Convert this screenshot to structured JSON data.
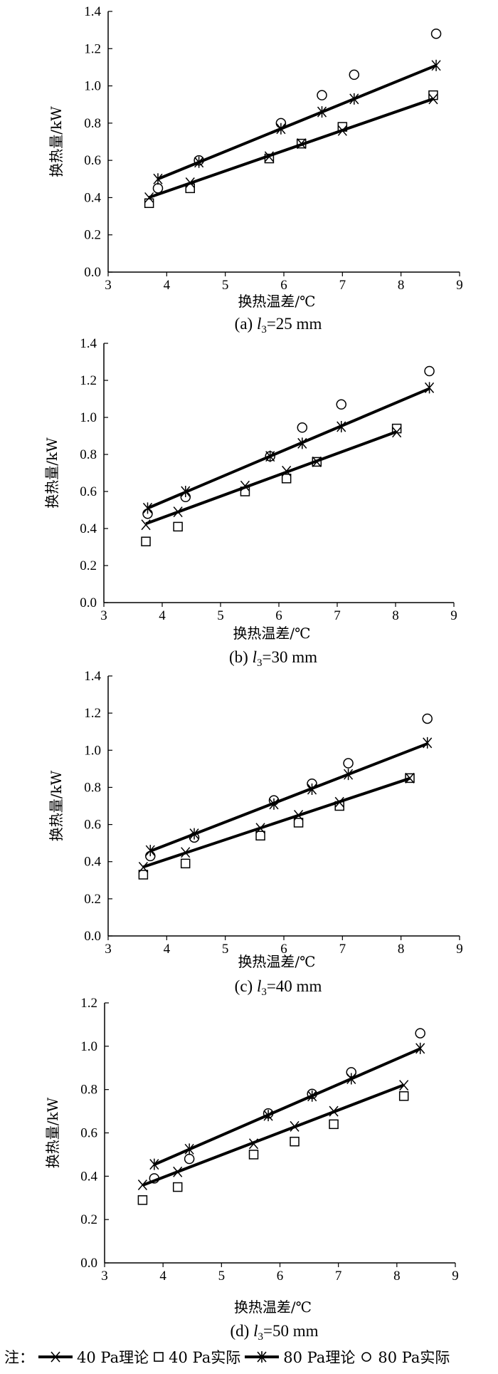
{
  "legend": {
    "prefix": "注：",
    "items": [
      "40 Pa理论",
      "40 Pa实际",
      "80 Pa理论",
      "80 Pa实际"
    ]
  },
  "chart_data": [
    {
      "type": "scatter",
      "caption": {
        "label": "(a)",
        "var": "l",
        "sub": "3",
        "rest": "=25 mm"
      },
      "xlabel": "换热温差/℃",
      "ylabel": "换热量/kW",
      "xlim": [
        3,
        9
      ],
      "ylim": [
        0,
        1.4
      ],
      "xticks": [
        "3",
        "4",
        "5",
        "6",
        "7",
        "8",
        "9"
      ],
      "yticks": [
        "0.0",
        "0.2",
        "0.4",
        "0.6",
        "0.8",
        "1.0",
        "1.2",
        "1.4"
      ],
      "series": [
        {
          "name": "40 Pa理论",
          "marker": "x",
          "fit_line": true,
          "x": [
            3.7,
            4.4,
            5.75,
            6.3,
            7.0,
            8.55
          ],
          "y": [
            0.4,
            0.48,
            0.62,
            0.69,
            0.76,
            0.93
          ]
        },
        {
          "name": "40 Pa实际",
          "marker": "square",
          "x": [
            3.7,
            4.4,
            5.75,
            6.3,
            7.0,
            8.55
          ],
          "y": [
            0.37,
            0.45,
            0.61,
            0.69,
            0.78,
            0.95
          ]
        },
        {
          "name": "80 Pa理论",
          "marker": "star",
          "fit_line": true,
          "x": [
            3.85,
            4.55,
            5.95,
            6.65,
            7.2,
            8.6
          ],
          "y": [
            0.5,
            0.59,
            0.77,
            0.86,
            0.93,
            1.11
          ]
        },
        {
          "name": "80 Pa实际",
          "marker": "circle",
          "x": [
            3.85,
            4.55,
            5.95,
            6.65,
            7.2,
            8.6
          ],
          "y": [
            0.45,
            0.6,
            0.8,
            0.95,
            1.06,
            1.28
          ]
        }
      ]
    },
    {
      "type": "scatter",
      "caption": {
        "label": "(b)",
        "var": "l",
        "sub": "3",
        "rest": "=30 mm"
      },
      "xlabel": "换热温差/℃",
      "ylabel": "换热量/kW",
      "xlim": [
        3,
        9
      ],
      "ylim": [
        0,
        1.4
      ],
      "xticks": [
        "3",
        "4",
        "5",
        "6",
        "7",
        "8",
        "9"
      ],
      "yticks": [
        "0.0",
        "0.2",
        "0.4",
        "0.6",
        "0.8",
        "1.0",
        "1.2",
        "1.4"
      ],
      "series": [
        {
          "name": "40 Pa理论",
          "marker": "x",
          "fit_line": true,
          "x": [
            3.72,
            4.27,
            5.42,
            6.13,
            6.65,
            8.02
          ],
          "y": [
            0.42,
            0.49,
            0.63,
            0.71,
            0.76,
            0.92
          ]
        },
        {
          "name": "40 Pa实际",
          "marker": "square",
          "x": [
            3.72,
            4.27,
            5.42,
            6.13,
            6.65,
            8.02
          ],
          "y": [
            0.33,
            0.41,
            0.6,
            0.67,
            0.76,
            0.94
          ]
        },
        {
          "name": "80 Pa理论",
          "marker": "star",
          "fit_line": true,
          "x": [
            3.75,
            4.4,
            5.85,
            6.4,
            7.07,
            8.58
          ],
          "y": [
            0.51,
            0.6,
            0.79,
            0.86,
            0.95,
            1.16
          ]
        },
        {
          "name": "80 Pa实际",
          "marker": "circle",
          "x": [
            3.75,
            4.4,
            5.85,
            6.4,
            7.07,
            8.58
          ],
          "y": [
            0.48,
            0.57,
            0.79,
            0.945,
            1.07,
            1.25
          ]
        }
      ]
    },
    {
      "type": "scatter",
      "caption": {
        "label": "(c)",
        "var": "l",
        "sub": "3",
        "rest": "=40 mm"
      },
      "xlabel": "换热温差/℃",
      "ylabel": "换热量/kW",
      "xlim": [
        3,
        9
      ],
      "ylim": [
        0,
        1.4
      ],
      "xticks": [
        "3",
        "4",
        "5",
        "6",
        "7",
        "8",
        "9"
      ],
      "yticks": [
        "0.0",
        "0.2",
        "0.4",
        "0.6",
        "0.8",
        "1.0",
        "1.2",
        "1.4"
      ],
      "series": [
        {
          "name": "40 Pa理论",
          "marker": "x",
          "fit_line": true,
          "x": [
            3.6,
            4.32,
            5.6,
            6.25,
            6.95,
            8.15
          ],
          "y": [
            0.37,
            0.45,
            0.58,
            0.65,
            0.72,
            0.85
          ]
        },
        {
          "name": "40 Pa实际",
          "marker": "square",
          "x": [
            3.6,
            4.32,
            5.6,
            6.25,
            6.95,
            8.15
          ],
          "y": [
            0.33,
            0.39,
            0.54,
            0.61,
            0.7,
            0.85
          ]
        },
        {
          "name": "80 Pa理论",
          "marker": "star",
          "fit_line": true,
          "x": [
            3.72,
            4.47,
            5.83,
            6.48,
            7.1,
            8.45
          ],
          "y": [
            0.46,
            0.55,
            0.71,
            0.79,
            0.87,
            1.04
          ]
        },
        {
          "name": "80 Pa实际",
          "marker": "circle",
          "x": [
            3.72,
            4.47,
            5.83,
            6.48,
            7.1,
            8.45
          ],
          "y": [
            0.43,
            0.53,
            0.73,
            0.82,
            0.93,
            1.17
          ]
        }
      ]
    },
    {
      "type": "scatter",
      "caption": {
        "label": "(d)",
        "var": "l",
        "sub": "3",
        "rest": "=50 mm"
      },
      "xlabel": "换热温差/℃",
      "ylabel": "换热量/kW",
      "xlim": [
        3,
        9
      ],
      "ylim": [
        0,
        1.2
      ],
      "xticks": [
        "3",
        "4",
        "5",
        "6",
        "7",
        "8",
        "9"
      ],
      "yticks": [
        "0.0",
        "0.2",
        "0.4",
        "0.6",
        "0.8",
        "1.0",
        "1.2"
      ],
      "series": [
        {
          "name": "40 Pa理论",
          "marker": "x",
          "fit_line": true,
          "x": [
            3.65,
            4.25,
            5.55,
            6.25,
            6.92,
            8.12
          ],
          "y": [
            0.36,
            0.42,
            0.55,
            0.63,
            0.7,
            0.82
          ]
        },
        {
          "name": "40 Pa实际",
          "marker": "square",
          "x": [
            3.65,
            4.25,
            5.55,
            6.25,
            6.92,
            8.12
          ],
          "y": [
            0.29,
            0.35,
            0.5,
            0.56,
            0.64,
            0.77
          ]
        },
        {
          "name": "80 Pa理论",
          "marker": "star",
          "fit_line": true,
          "x": [
            3.85,
            4.45,
            5.8,
            6.55,
            7.22,
            8.4
          ],
          "y": [
            0.455,
            0.525,
            0.68,
            0.77,
            0.85,
            0.99
          ]
        },
        {
          "name": "80 Pa实际",
          "marker": "circle",
          "x": [
            3.85,
            4.45,
            5.8,
            6.55,
            7.22,
            8.4
          ],
          "y": [
            0.39,
            0.48,
            0.69,
            0.78,
            0.88,
            1.06
          ]
        }
      ]
    }
  ]
}
